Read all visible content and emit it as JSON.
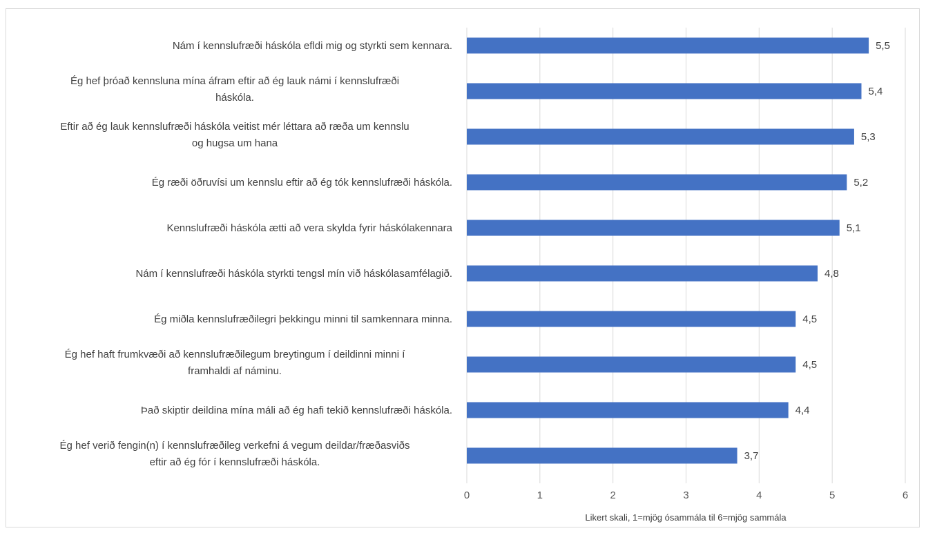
{
  "chart_data": {
    "type": "bar",
    "orientation": "horizontal",
    "title": "",
    "xlabel": "Likert skali, 1=mjög ósammála til 6=mjög sammála",
    "ylabel": "",
    "xlim": [
      0,
      6
    ],
    "ticks": [
      "0",
      "1",
      "2",
      "3",
      "4",
      "5",
      "6"
    ],
    "grid": true,
    "bar_color": "#4472c4",
    "categories": [
      [
        "Nám í kennslufræði háskóla efldi mig og styrkti sem kennara."
      ],
      [
        "Ég hef þróað kennsluna mína áfram eftir að ég lauk námi í kennslufræði",
        "háskóla."
      ],
      [
        "Eftir að ég lauk kennslufræði háskóla veitist mér léttara að ræða um kennslu",
        "og hugsa um hana"
      ],
      [
        "Ég ræði öðruvísi um kennslu eftir að ég tók kennslufræði háskóla."
      ],
      [
        "Kennslufræði háskóla ætti að vera skylda fyrir háskólakennara"
      ],
      [
        "Nám í kennslufræði háskóla styrkti tengsl mín við háskólasamfélagið."
      ],
      [
        "Ég miðla kennslufræðilegri þekkingu minni til samkennara minna."
      ],
      [
        "Ég hef haft frumkvæði að kennslufræðilegum breytingum í deildinni minni í",
        "framhaldi af náminu."
      ],
      [
        "Það skiptir deildina mína máli að ég hafi tekið kennslufræði háskóla."
      ],
      [
        "Ég hef verið fengin(n) í kennslufræðileg verkefni á vegum deildar/fræðasviðs",
        "eftir að ég fór í kennslufræði háskóla."
      ]
    ],
    "values": [
      5.5,
      5.4,
      5.3,
      5.2,
      5.1,
      4.8,
      4.5,
      4.5,
      4.4,
      3.7
    ],
    "value_labels": [
      "5,5",
      "5,4",
      "5,3",
      "5,2",
      "5,1",
      "4,8",
      "4,5",
      "4,5",
      "4,4",
      "3,7"
    ]
  }
}
